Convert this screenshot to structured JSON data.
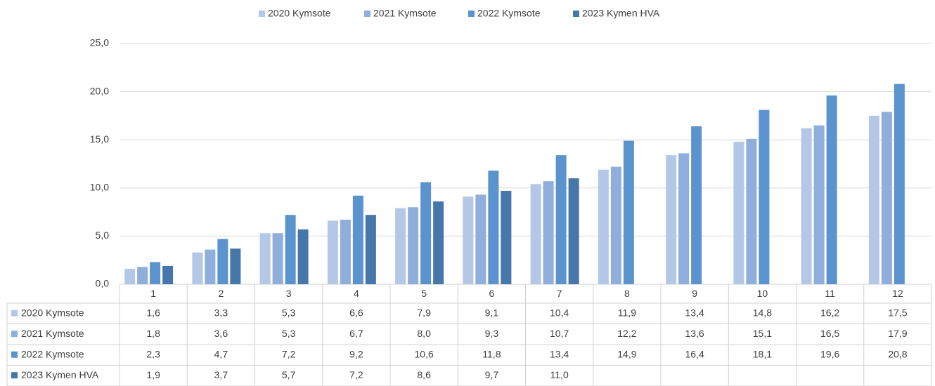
{
  "chart_data": {
    "type": "bar",
    "categories": [
      "1",
      "2",
      "3",
      "4",
      "5",
      "6",
      "7",
      "8",
      "9",
      "10",
      "11",
      "12"
    ],
    "series": [
      {
        "name": "2020 Kymsote",
        "color": "#b4c7e7",
        "values": [
          1.6,
          3.3,
          5.3,
          6.6,
          7.9,
          9.1,
          10.4,
          11.9,
          13.4,
          14.8,
          16.2,
          17.5
        ],
        "value_labels": [
          "1,6",
          "3,3",
          "5,3",
          "6,6",
          "7,9",
          "9,1",
          "10,4",
          "11,9",
          "13,4",
          "14,8",
          "16,2",
          "17,5"
        ]
      },
      {
        "name": "2021 Kymsote",
        "color": "#8faedc",
        "values": [
          1.8,
          3.6,
          5.3,
          6.7,
          8.0,
          9.3,
          10.7,
          12.2,
          13.6,
          15.1,
          16.5,
          17.9
        ],
        "value_labels": [
          "1,8",
          "3,6",
          "5,3",
          "6,7",
          "8,0",
          "9,3",
          "10,7",
          "12,2",
          "13,6",
          "15,1",
          "16,5",
          "17,9"
        ]
      },
      {
        "name": "2022 Kymsote",
        "color": "#5b93cf",
        "values": [
          2.3,
          4.7,
          7.2,
          9.2,
          10.6,
          11.8,
          13.4,
          14.9,
          16.4,
          18.1,
          19.6,
          20.8
        ],
        "value_labels": [
          "2,3",
          "4,7",
          "7,2",
          "9,2",
          "10,6",
          "11,8",
          "13,4",
          "14,9",
          "16,4",
          "18,1",
          "19,6",
          "20,8"
        ]
      },
      {
        "name": "2023 Kymen HVA",
        "color": "#4677ab",
        "values": [
          1.9,
          3.7,
          5.7,
          7.2,
          8.6,
          9.7,
          11.0,
          null,
          null,
          null,
          null,
          null
        ],
        "value_labels": [
          "1,9",
          "3,7",
          "5,7",
          "7,2",
          "8,6",
          "9,7",
          "11,0",
          null,
          null,
          null,
          null,
          null
        ]
      }
    ],
    "ylim": [
      0,
      25
    ],
    "yticks": [
      {
        "value": 0,
        "label": "0,0"
      },
      {
        "value": 5,
        "label": "5,0"
      },
      {
        "value": 10,
        "label": "10,0"
      },
      {
        "value": 15,
        "label": "15,0"
      },
      {
        "value": 20,
        "label": "20,0"
      },
      {
        "value": 25,
        "label": "25,0"
      }
    ],
    "grid": true,
    "legend": "top"
  }
}
